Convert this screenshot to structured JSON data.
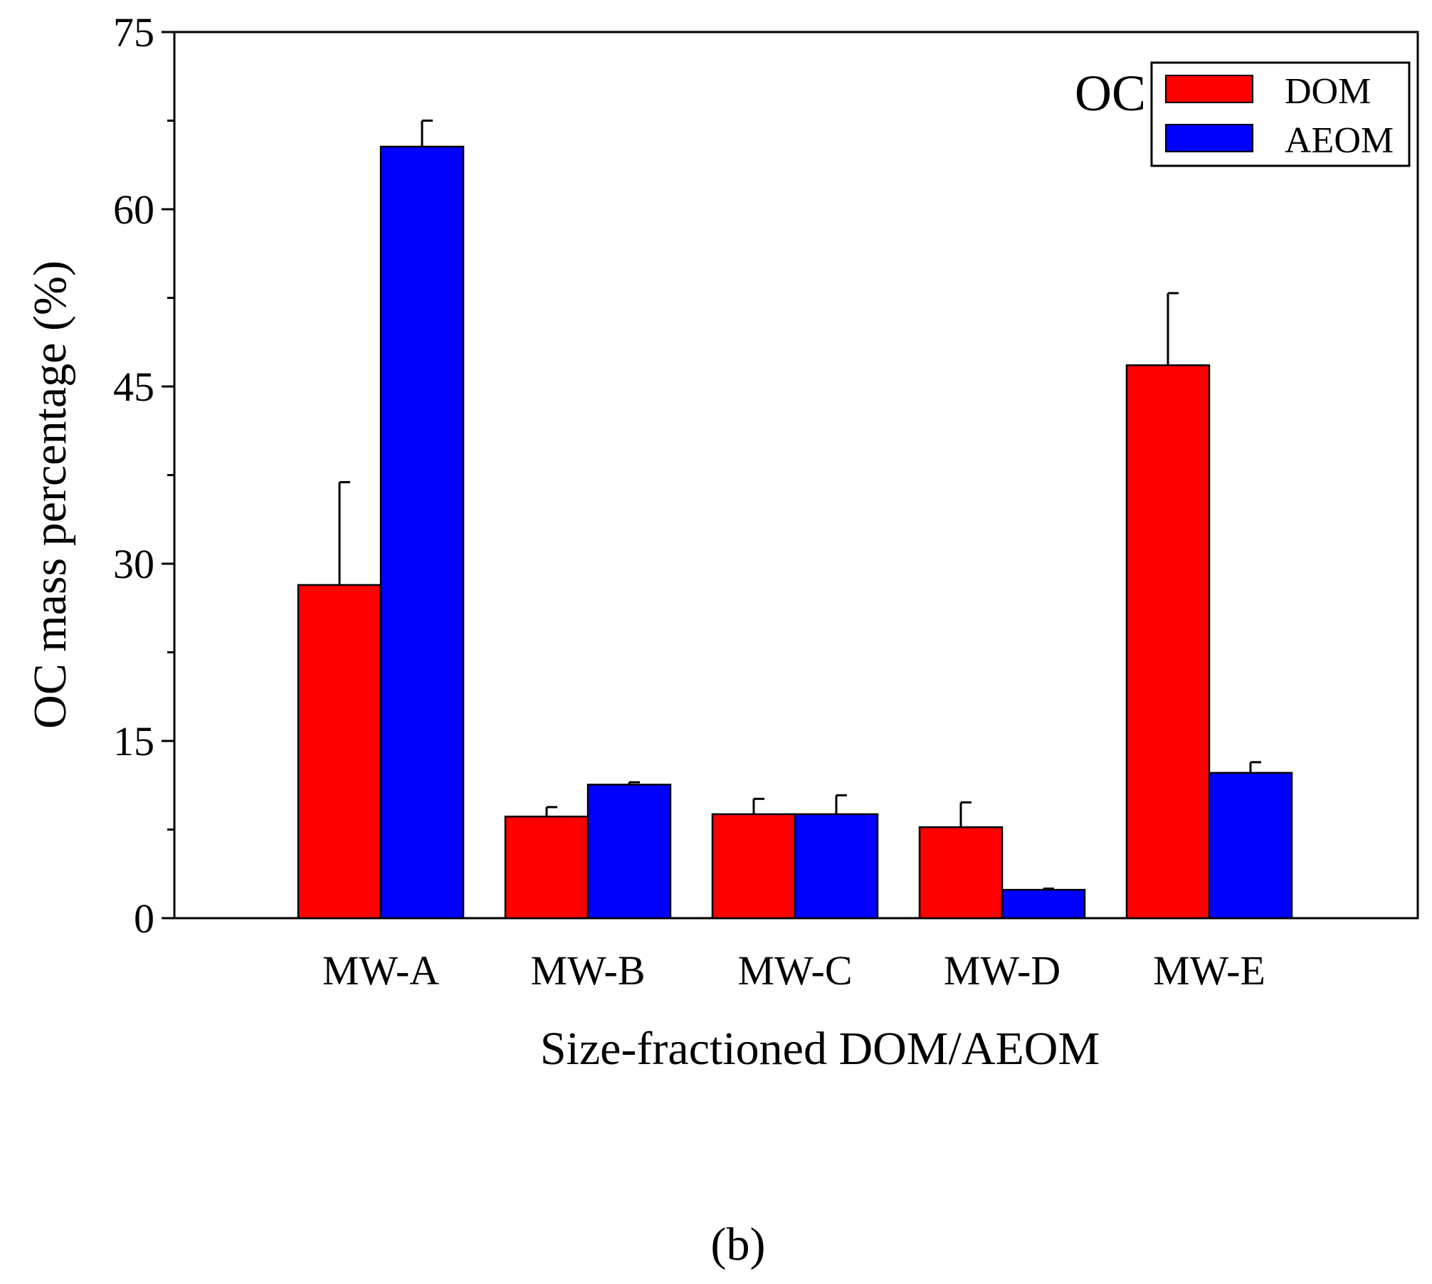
{
  "chart_data": {
    "type": "bar",
    "panel_tag": "OC",
    "panel_label": "(b)",
    "xlabel": "Size-fractioned DOM/AEOM",
    "ylabel": "OC mass percentage (%)",
    "ylim": [
      0,
      75
    ],
    "yticks": [
      0,
      15,
      30,
      45,
      60,
      75
    ],
    "ytick_labels": [
      "0",
      "15",
      "30",
      "45",
      "60",
      "75"
    ],
    "yminor": [
      7.5,
      22.5,
      37.5,
      52.5,
      67.5
    ],
    "categories": [
      "MW-A",
      "MW-B",
      "MW-C",
      "MW-D",
      "MW-E"
    ],
    "series": [
      {
        "name": "DOM",
        "color": "#ff0000",
        "values": [
          28.2,
          8.6,
          8.8,
          7.7,
          46.8
        ],
        "errors": [
          8.7,
          0.8,
          1.3,
          2.1,
          6.1
        ]
      },
      {
        "name": "AEOM",
        "color": "#0000ff",
        "values": [
          65.3,
          11.3,
          8.8,
          2.4,
          12.3
        ],
        "errors": [
          2.2,
          0.2,
          1.6,
          0.1,
          0.9
        ]
      }
    ],
    "legend_position": "top-right"
  }
}
